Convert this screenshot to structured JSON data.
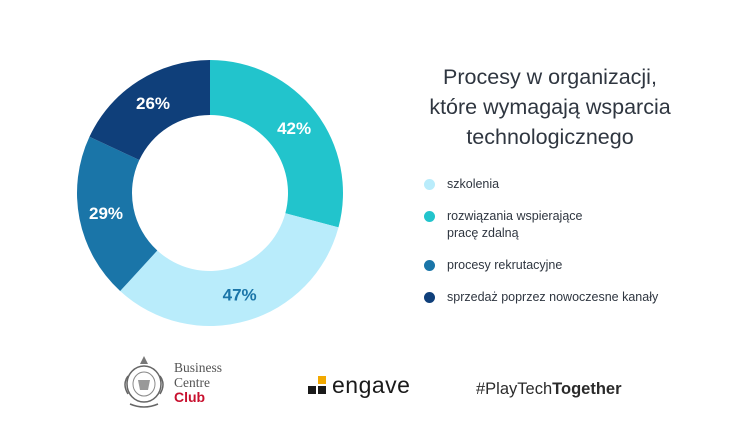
{
  "title_lines": [
    "Procesy w organizacji,",
    "które wymagają wsparcia",
    "technologicznego"
  ],
  "legend": [
    {
      "label": "szkolenia",
      "color": "#b9ecfb"
    },
    {
      "label": "rozwiązania wspierające\npracę zdalną",
      "color": "#22c4cc"
    },
    {
      "label": "procesy rekrutacyjne",
      "color": "#1a75a8"
    },
    {
      "label": "sprzedaż poprzez nowoczesne kanały",
      "color": "#0f3f7a"
    }
  ],
  "chart_data": {
    "type": "pie",
    "donut": true,
    "categories": [
      "rozwiązania wspierające pracę zdalną",
      "szkolenia",
      "procesy rekrutacyjne",
      "sprzedaż poprzez nowoczesne kanały"
    ],
    "values": [
      42,
      47,
      29,
      26
    ],
    "labels": [
      "42%",
      "47%",
      "29%",
      "26%"
    ],
    "colors": [
      "#22c4cc",
      "#b9ecfb",
      "#1a75a8",
      "#0f3f7a"
    ],
    "label_colors": [
      "#ffffff",
      "#1a75a8",
      "#ffffff",
      "#ffffff"
    ]
  },
  "logos": {
    "bcc_line1": "Business",
    "bcc_line2": "Centre",
    "bcc_line3": "Club",
    "engave": "engave",
    "tag_prefix": "#PlayTech",
    "tag_suffix": "Together"
  }
}
